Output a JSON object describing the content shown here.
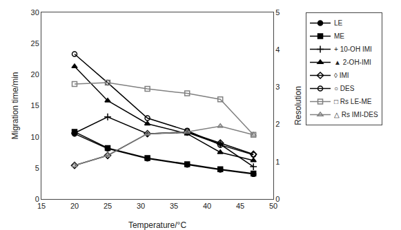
{
  "chart_data": {
    "type": "line",
    "x": [
      20,
      25,
      31,
      37,
      42,
      47
    ],
    "xlabel": "Temperature/°C",
    "ylabel": "Migration time/min",
    "y2label": "Resolution",
    "xlim": [
      15,
      50
    ],
    "xticks": [
      15,
      20,
      25,
      30,
      35,
      40,
      45,
      50
    ],
    "ylim": [
      0,
      30
    ],
    "yticks": [
      0,
      5,
      10,
      15,
      20,
      25,
      30
    ],
    "y2lim": [
      0,
      5
    ],
    "y2ticks": [
      0,
      1,
      2,
      3,
      4,
      5
    ],
    "grid": false,
    "legend": "right",
    "series": [
      {
        "name": "LE",
        "color": "black",
        "marker": "circle",
        "values": [
          10.5,
          8.1,
          6.5,
          5.5,
          4.7,
          4.0
        ]
      },
      {
        "name": "ME",
        "color": "black",
        "marker": "square",
        "values": [
          10.8,
          8.2,
          6.6,
          5.6,
          4.8,
          4.1
        ]
      },
      {
        "name": "+ 10-OH IMI",
        "color": "black",
        "marker": "cross-thin-open",
        "values": [
          10.6,
          13.2,
          10.5,
          10.7,
          8.8,
          5.2
        ]
      },
      {
        "name": "▲ 2-OH-IMI",
        "color": "black",
        "marker": "triangle-up",
        "values": [
          21.3,
          15.8,
          12.1,
          10.5,
          7.5,
          6.2
        ]
      },
      {
        "name": "◊ IMI",
        "color": "black",
        "marker": "diamond-open",
        "values": [
          5.4,
          7.0,
          10.5,
          10.8,
          9.0,
          7.2
        ]
      },
      {
        "name": "○ DES",
        "color": "black",
        "marker": "circle-open",
        "values": [
          23.3,
          18.7,
          13.0,
          11.0,
          8.7,
          7.1
        ]
      },
      {
        "name": "□ Rs LE-ME",
        "color": "gray",
        "marker": "square-open",
        "axis": "y2",
        "values": [
          3.08,
          3.12,
          2.95,
          2.83,
          2.67,
          1.72
        ]
      },
      {
        "name": "△ Rs IMI-DES",
        "color": "gray",
        "marker": "triangle-up-open",
        "axis": "y2",
        "values": [
          0.9,
          1.17,
          1.75,
          1.8,
          1.95,
          1.72
        ]
      }
    ]
  }
}
